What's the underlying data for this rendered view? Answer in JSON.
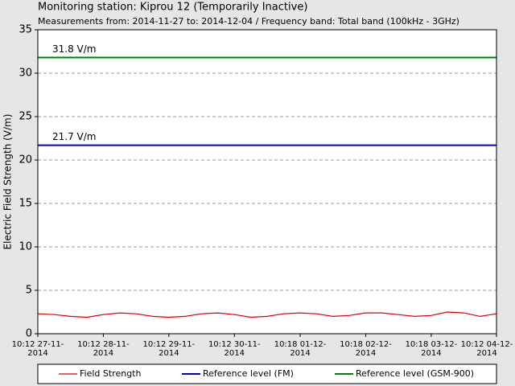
{
  "chart_data": {
    "type": "line",
    "title": "Monitoring station: Kiprou 12 (Temporarily Inactive)",
    "subtitle": "Measurements from: 2014-11-27 to: 2014-12-04 / Frequency band: Total band (100kHz - 3GHz)",
    "ylabel": "Electric Field Strength (V/m)",
    "ylim": [
      0,
      35
    ],
    "yticks": [
      0,
      5,
      10,
      15,
      20,
      25,
      30,
      35
    ],
    "grid": true,
    "xlim": [
      "2014-11-27T10:12",
      "2014-12-04T10:12"
    ],
    "xticks": [
      {
        "value": "2014-11-27T10:12",
        "label": "10:12 27-11-2014"
      },
      {
        "value": "2014-11-28T10:12",
        "label": "10:12 28-11-2014"
      },
      {
        "value": "2014-11-29T10:12",
        "label": "10:12 29-11-2014"
      },
      {
        "value": "2014-11-30T10:12",
        "label": "10:12 30-11-2014"
      },
      {
        "value": "2014-12-01T10:18",
        "label": "10:18 01-12-2014"
      },
      {
        "value": "2014-12-02T10:18",
        "label": "10:18 02-12-2014"
      },
      {
        "value": "2014-12-03T10:18",
        "label": "10:18 03-12-2014"
      },
      {
        "value": "2014-12-04T10:12",
        "label": "10:12 04-12-2014"
      }
    ],
    "series": [
      {
        "name": "Field Strength",
        "color": "#dd0000",
        "x": [
          "2014-11-27T10:12",
          "2014-11-27T16:12",
          "2014-11-27T22:12",
          "2014-11-28T04:12",
          "2014-11-28T10:12",
          "2014-11-28T16:12",
          "2014-11-28T22:12",
          "2014-11-29T04:12",
          "2014-11-29T10:12",
          "2014-11-29T16:12",
          "2014-11-29T22:12",
          "2014-11-30T04:12",
          "2014-11-30T10:12",
          "2014-11-30T16:12",
          "2014-11-30T22:12",
          "2014-12-01T04:12",
          "2014-12-01T10:12",
          "2014-12-01T16:12",
          "2014-12-01T22:12",
          "2014-12-02T04:12",
          "2014-12-02T10:12",
          "2014-12-02T16:12",
          "2014-12-02T22:12",
          "2014-12-03T04:12",
          "2014-12-03T10:12",
          "2014-12-03T16:12",
          "2014-12-03T22:12",
          "2014-12-04T04:12",
          "2014-12-04T10:12"
        ],
        "values": [
          2.3,
          2.2,
          2.0,
          1.9,
          2.2,
          2.4,
          2.3,
          2.0,
          1.9,
          2.0,
          2.3,
          2.4,
          2.2,
          1.9,
          2.0,
          2.3,
          2.4,
          2.3,
          2.0,
          2.1,
          2.4,
          2.4,
          2.2,
          2.0,
          2.1,
          2.5,
          2.4,
          2.0,
          2.3
        ]
      },
      {
        "name": "Reference level (FM)",
        "color": "#0000cc",
        "values": [
          21.7
        ],
        "value_labels": [
          "21.7 V/m"
        ]
      },
      {
        "name": "Reference level (GSM-900)",
        "color": "#008000",
        "values": [
          31.8
        ],
        "value_labels": [
          "31.8 V/m"
        ]
      }
    ]
  }
}
